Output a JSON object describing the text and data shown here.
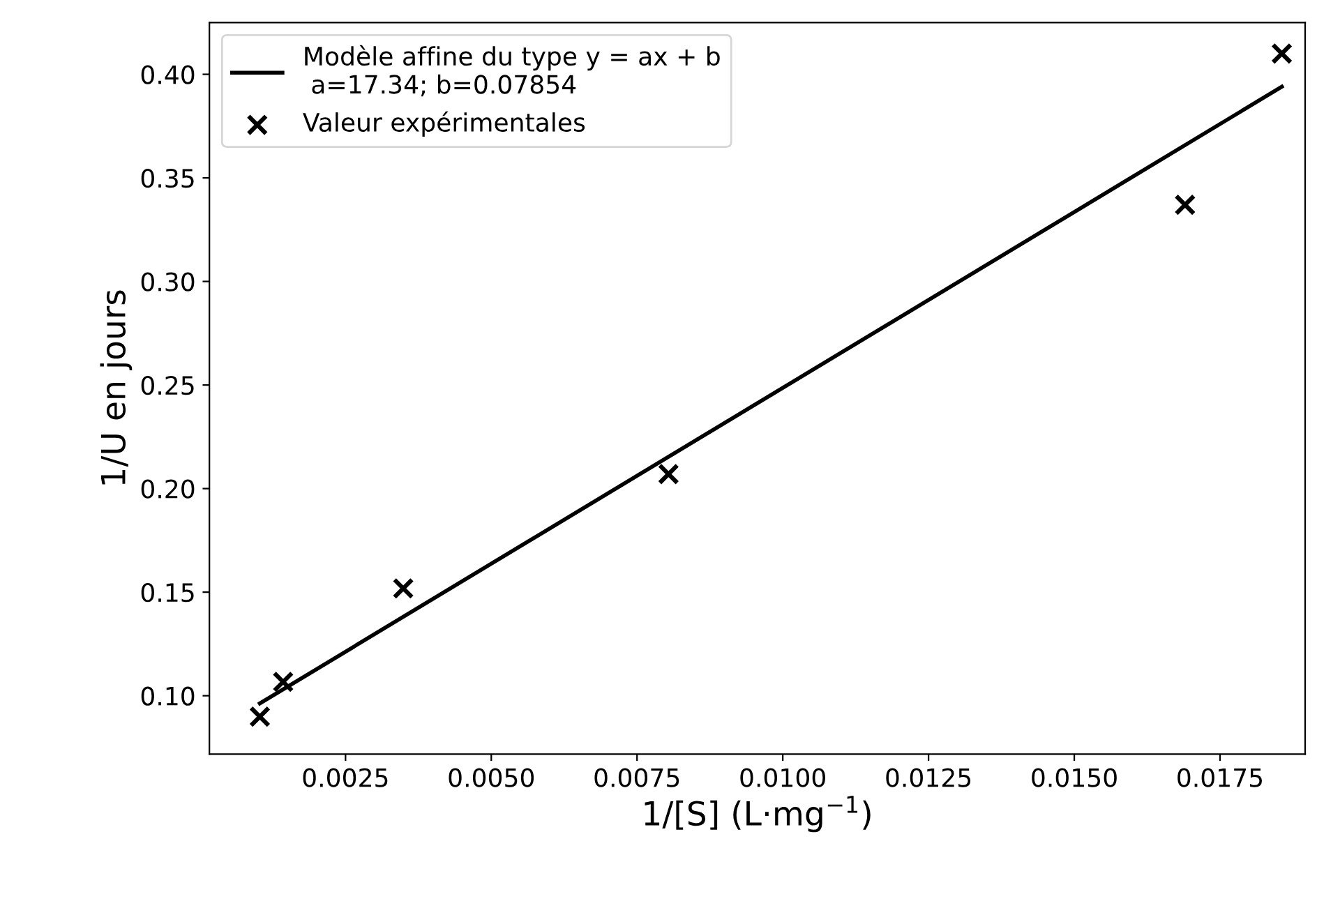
{
  "chart_data": {
    "type": "scatter",
    "xlabel": "1/[S] (L·mg$^{−1}$)",
    "ylabel": "1/U en jours",
    "xlim": [
      0.000165,
      0.01896
    ],
    "ylim": [
      0.0718,
      0.425
    ],
    "xticks": [
      {
        "value": 0.0025,
        "label": "0.0025"
      },
      {
        "value": 0.005,
        "label": "0.0050"
      },
      {
        "value": 0.0075,
        "label": "0.0075"
      },
      {
        "value": 0.01,
        "label": "0.0100"
      },
      {
        "value": 0.0125,
        "label": "0.0125"
      },
      {
        "value": 0.015,
        "label": "0.0150"
      },
      {
        "value": 0.0175,
        "label": "0.0175"
      }
    ],
    "yticks": [
      {
        "value": 0.1,
        "label": "0.10"
      },
      {
        "value": 0.15,
        "label": "0.15"
      },
      {
        "value": 0.2,
        "label": "0.20"
      },
      {
        "value": 0.25,
        "label": "0.25"
      },
      {
        "value": 0.3,
        "label": "0.30"
      },
      {
        "value": 0.35,
        "label": "0.35"
      },
      {
        "value": 0.4,
        "label": "0.40"
      }
    ],
    "grid": false,
    "legend": "top left",
    "series": [
      {
        "type": "line",
        "name": "Modèle affine du type y = ax + b\n a=17.34; b=0.07854",
        "color": "#000000",
        "marker": "none",
        "line_style": "solid",
        "x": [
          0.00103,
          0.01856
        ],
        "values": [
          0.0963,
          0.394
        ]
      },
      {
        "name": "Valeur expérimentales",
        "color": "#000000",
        "marker": "cross",
        "x": [
          0.00103,
          0.00143,
          0.00349,
          0.00804,
          0.0169,
          0.01856
        ],
        "values": [
          0.0899,
          0.1067,
          0.1518,
          0.207,
          0.337,
          0.41
        ]
      }
    ]
  }
}
